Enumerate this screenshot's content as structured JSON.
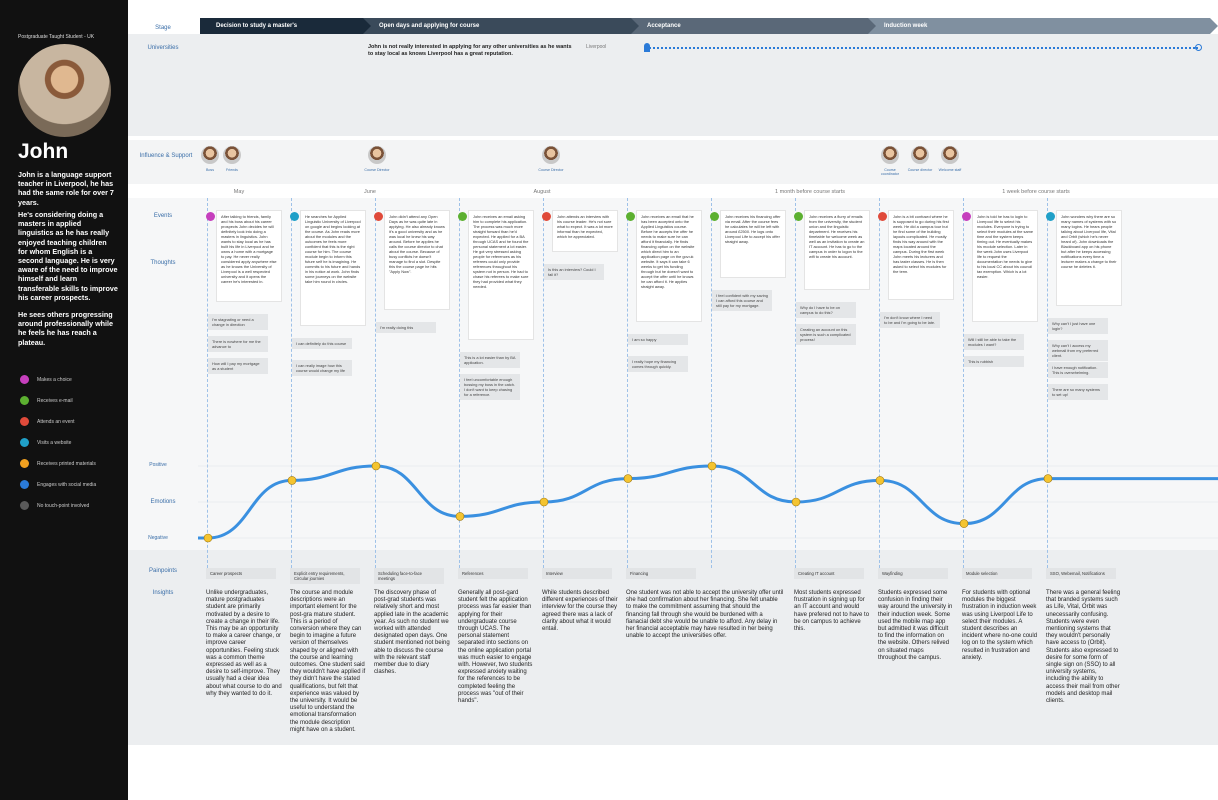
{
  "persona": {
    "subtitle": "Postgraduate Taught Student - UK",
    "name": "John",
    "bio": [
      "John is a language support teacher in Liverpool, he has had the same role for over 7 years.",
      "He's considering doing a masters in applied linguistics as he has really enjoyed teaching children for whom English is a second language. He is very aware of the need to improve himself and learn transferable skills to improve his career prospects.",
      "He sees others progressing around professionally while he feels he has reach a plateau."
    ]
  },
  "legend": [
    {
      "label": "Makes a choice",
      "color": "#c63fbd"
    },
    {
      "label": "Receives e-mail",
      "color": "#5cb030"
    },
    {
      "label": "Attends an event",
      "color": "#e04a3a"
    },
    {
      "label": "Visits a website",
      "color": "#20a0c8"
    },
    {
      "label": "Receives printed materials",
      "color": "#f0a020"
    },
    {
      "label": "Engages with social media",
      "color": "#2a7ad8"
    },
    {
      "label": "No touch-point involved",
      "color": "#5a5a5a"
    }
  ],
  "row_labels": {
    "stage": "Stage",
    "universities": "Universities",
    "influence": "Influence & Support",
    "events": "Events",
    "thoughts": "Thoughts",
    "positive": "Positive",
    "emotions": "Emotions",
    "negative": "Negative",
    "painpoints": "Painpoints",
    "insights": "Insights"
  },
  "stages": [
    {
      "label": "Decision to study a master's",
      "color": "#1a2a3a"
    },
    {
      "label": "Open days and applying for course",
      "color": "#3a4a5a"
    },
    {
      "label": "Acceptance",
      "color": "#5a6878"
    },
    {
      "label": "Induction week",
      "color": "#8090a0"
    }
  ],
  "universities": {
    "note": "John is not really interested in applying for any other universities as he wants to stay local as knows Liverpool has a great reputation.",
    "track_label": "Liverpool"
  },
  "influences": [
    {
      "label": "Boss"
    },
    {
      "label": "Friends"
    },
    {
      "label": "Course Director"
    },
    {
      "label": "Course Director"
    },
    {
      "label": "Course coordinator"
    },
    {
      "label": "Course director"
    },
    {
      "label": "Welcome staff"
    }
  ],
  "months": [
    "May",
    "June",
    "August",
    "1 month before course starts",
    "1 week before course starts"
  ],
  "events": [
    {
      "icon": "#c63fbd",
      "text": "After talking to friends, family and his boss about his career prospects John decides he will definitely look into doing a masters in linguistics. John wants to stay local as he has built his life in Liverpool and he owns a home with a mortgage to pay. He never really considered apply anywhere else as he knows the University of Liverpool is a well respected university and it opens the career he's interested in."
    },
    {
      "icon": "#20a0c8",
      "text": "He searches for Applied Linguistic University of Liverpool on google and begins looking at the course. As John reads more about the modules and the outcomes he feels more confident that this is the right course for him. The course module begin to inform this future self he is imagining. He commits to his future and hands in his notice at work. John finds some journeys on the website take him round in circles."
    },
    {
      "icon": "#e04a3a",
      "text": "John didn't attend any Open Days as he was quite late in applying. He also already knows it's a good university and as he was local he knew his way around. Before he applies he calls the course director to chat about the course. Because of busy conflicts he doesn't manage to find a slot. Despite this the course page he hits \"Apply Now\"."
    },
    {
      "icon": "#5cb030",
      "text": "John receives an email asking him to complete his application. The process was much more straight forward than he'd expected. He applied for a BA through UCAS and he found the personal statement a lot easier. He got very stressed asking people for references as his referees could only provide references throughout his system not in person. He had to chase his referees to make sure they had provided what they needed."
    },
    {
      "icon": "#e04a3a",
      "text": "John attends an interview with his course leader. He's not sure what to expect. It was a lot more informal than he expected, which he appreciated."
    },
    {
      "icon": "#5cb030",
      "text": "John receives an email that he has been accepted onto the Applied Linguistics course. Before he accepts the offer he needs to make sure he can afford it financially. He finds financing option on the website which direct him to an application page on the gov.uk website. It says it can take 6 weeks to get his funding through but he doesn't want to accept the offer until he knows he can afford it. He applies straight away."
    },
    {
      "icon": "#5cb030",
      "text": "John receives his financing offer via email. After the course fees he calculates he will be left with around £2500. He logs onto Liverpool Life to accept his offer straight away."
    },
    {
      "icon": "#5cb030",
      "text": "John receives a flurry of emails from the university, the student union and the linguistic department. He receives his timetable for welcome week as well as an invitation to create an IT account. He has to go to the campus in order to logon to the wifi to create his account."
    },
    {
      "icon": "#e04a3a",
      "text": "John is a bit confused where he is supposed to go during his first week. He did a campus tour but he find some of the building layouts complicated. He mostly finds his way around with the maps located around the campus. During the first week John meets his lecturers and has taster classes. He is then asked to select his modules for the term."
    },
    {
      "icon": "#c63fbd",
      "text": "John is told he has to login to Liverpool life to select his modules. Everyone is trying to select their modules at the same time and the system keeps timing out. He eventually makes his module selection. Later in the week John uses Liverpool life to request the documentation he needs to give to his local CC about his council tax exemption. Which is a lot easier."
    },
    {
      "icon": "#20a0c8",
      "text": "John wonders why there are so many names of systems with so many logins. He hears people talking about Liverpool life, Vital and Orbit (which he's never heard of). John downloads the Blackboard app on his phone but after he keeps accessing notifications every time a lecturer makes a change to their course he deletes it."
    }
  ],
  "thoughts": [
    [
      "I'm stagnating or need a change in direction",
      "There is nowhere for me the advance to",
      "How will I pay my mortgage as a student"
    ],
    [
      "I can definitely do this course",
      "I can really image how this course would change my life"
    ],
    [
      "I'm really doing this"
    ],
    [
      "This is a lot easier than by BA application.",
      "I feel uncomfortable enough bossing my boss in the catch. I don't want to keep chasing for a reference."
    ],
    [
      "Is this an interview? Could I fail it?"
    ],
    [
      "I am so happy",
      "I really hope my financing comes through quickly."
    ],
    [
      "I feel confident with my saving I can afford this course and still pay for my mortgage."
    ],
    [
      "Why do I have to be on campus to do this?",
      "Creating an account on this system is such a complicated process!"
    ],
    [
      "I'm don't know where I need to be and I'm going to be late."
    ],
    [
      "Will I still be able to take the modules I want?",
      "This is rubbish"
    ],
    [
      "Why can't I just have one login?",
      "Why can't I access my webmail from my preferred client.",
      "I have enough notification. This is overwhelming.",
      "There are so many systems to set up!"
    ]
  ],
  "emotion_levels": [
    -1.0,
    0.6,
    1.0,
    -0.4,
    0.0,
    0.65,
    1.0,
    0.0,
    0.6,
    -0.6,
    0.65
  ],
  "painpoints": [
    "Career prospects",
    "Explicit entry requirements, Circular journies",
    "Scheduling face-to-face meetings",
    "References",
    "Interview",
    "Financing",
    "Creating IT account",
    "Wayfinding",
    "Module selection",
    "SSO, Webemail, Notifications"
  ],
  "insights": [
    "Unlike undergraduates, mature postgraduates student are primarily motivated by a desire to create a change in their life. This may be an opportunity to make a career change, or improve career opportunities. Feeling stuck was a common theme expressed as well as a desire to self-improve. They usually had a clear idea about what course to do and why they wanted to do it.",
    "The course and module descriptions were an important element for the post-gra mature student. This is a period of conversion where they can begin to imagine a future version of themselves shaped by or aligned with the course and learning outcomes. One student said they wouldn't have applied if they didn't have the stated qualifications, but felt that experience was valued by the university. It would be useful to understand the emotional transformation the module description might have on a student.",
    "The discovery phase of post-grad students was relatively short and most applied late in the academic year. As such no student we worked with attended designated open days. One student mentioned not being able to discuss the course with the relevant staff member due to diary clashes.",
    "Generally all post-gard student felt the application process was far easier than applying for their undergraduate course through UCAS. The personal statement separated into sections on the online application portal was much easier to engage with. However, two students expressed anxiety waiting for the references to be completed feeling the process was \"out of their hands\".",
    "While students described different experiences of their interview for the course they agreed there was a lack of clarity about what it would entail.",
    "One student was not able to accept the university offer until she had confirmation about her financing. She felt unable to make the commitment assuming that should the financing fall through she would be burdened with a fianacial debt she would be unable to afford. Any delay in her financial acceptable may have resulted in her being unable to accept the universities offer.",
    "Most students expressed frustration in signing up for an IT account and would have prefered not to have to be on campus to achieve this.",
    "Students expressed some confusion in finding their way around the university in their induction week. Some used the mobile map app but admitted it was difficult to find the information on the website. Others relived on situated maps throughout the campus.",
    "For students with optional modules the biggest frustration in induction week was using Liverpool Life to select their modules. A student describes an incident where no-one could log on to the system which resulted in frustration and anxiety.",
    "There was a general feeling that branded systems such as Life, Vital, Orbit was unecessarily confusing. Students were even mentioning systems that they wouldn't personally have access to (Orbit). Students also expressed to desire for some form of single sign on (SSO) to all university systems, including the ability to access their mail from other models and desktop mail clients."
  ]
}
